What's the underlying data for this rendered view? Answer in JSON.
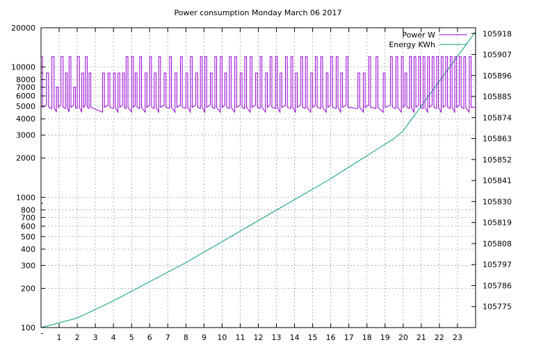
{
  "chart_data": {
    "type": "line",
    "title": "Power consumption Monday March 06 2017",
    "x_axis": {
      "range": [
        0,
        24
      ],
      "ticks": [
        1,
        2,
        3,
        4,
        5,
        6,
        7,
        8,
        9,
        10,
        11,
        12,
        13,
        14,
        15,
        16,
        17,
        18,
        19,
        20,
        21,
        22,
        23
      ],
      "tick_labels": [
        "1",
        "2",
        "3",
        "4",
        "5",
        "6",
        "7",
        "8",
        "9",
        "10",
        "11",
        "12",
        "13",
        "14",
        "15",
        "16",
        "17",
        "18",
        "19",
        "20",
        "21",
        "22",
        "23"
      ],
      "grid": true
    },
    "y_axis_left": {
      "scale": "log",
      "range": [
        100,
        20000
      ],
      "ticks": [
        100,
        200,
        300,
        400,
        500,
        600,
        700,
        800,
        1000,
        2000,
        3000,
        4000,
        5000,
        6000,
        7000,
        8000,
        10000,
        20000
      ],
      "tick_labels": [
        "100",
        "200",
        "300",
        "400",
        "500",
        "600",
        "700",
        "800",
        "1000",
        "2000",
        "3000",
        "4000",
        "5000",
        "6000",
        "7000",
        "8000",
        "10000",
        "20000"
      ],
      "grid": true
    },
    "y_axis_right": {
      "scale": "linear",
      "range": [
        105764,
        105921
      ],
      "ticks": [
        105775,
        105786,
        105797,
        105808,
        105819,
        105830,
        105841,
        105852,
        105863,
        105874,
        105885,
        105896,
        105907,
        105918
      ],
      "tick_labels": [
        "105775",
        "105786",
        "105797",
        "105808",
        "105819",
        "105830",
        "105841",
        "105852",
        "105863",
        "105874",
        "105885",
        "105896",
        "105907",
        "105918"
      ]
    },
    "legend": {
      "placement": "top-right"
    },
    "series": [
      {
        "name": "Power W",
        "axis": "left",
        "color": "#9400d3",
        "baseline_w": 4900,
        "peak_w": 12000,
        "mid_w": 9000,
        "pulses": [
          [
            0.0,
            0.08,
            12000
          ],
          [
            0.3,
            0.42,
            9000
          ],
          [
            0.6,
            0.72,
            12000
          ],
          [
            0.85,
            0.95,
            7000
          ],
          [
            1.1,
            1.22,
            12000
          ],
          [
            1.35,
            1.45,
            9000
          ],
          [
            1.55,
            1.65,
            12000
          ],
          [
            1.8,
            1.9,
            7000
          ],
          [
            2.0,
            2.12,
            12000
          ],
          [
            2.25,
            2.35,
            9000
          ],
          [
            2.45,
            2.55,
            12000
          ],
          [
            2.65,
            2.75,
            9000
          ],
          [
            3.4,
            3.5,
            9000
          ],
          [
            3.7,
            3.8,
            9000
          ],
          [
            4.0,
            4.1,
            9000
          ],
          [
            4.25,
            4.35,
            9000
          ],
          [
            4.5,
            4.6,
            9000
          ],
          [
            4.7,
            4.8,
            12000
          ],
          [
            5.0,
            5.1,
            12000
          ],
          [
            5.2,
            5.3,
            9000
          ],
          [
            5.45,
            5.55,
            12000
          ],
          [
            5.75,
            5.85,
            9000
          ],
          [
            6.0,
            6.1,
            12000
          ],
          [
            6.25,
            6.35,
            9000
          ],
          [
            6.5,
            6.6,
            12000
          ],
          [
            6.8,
            6.9,
            9000
          ],
          [
            7.1,
            7.2,
            12000
          ],
          [
            7.4,
            7.5,
            9000
          ],
          [
            7.7,
            7.8,
            12000
          ],
          [
            8.0,
            8.1,
            9000
          ],
          [
            8.25,
            8.35,
            12000
          ],
          [
            8.55,
            8.65,
            9000
          ],
          [
            8.8,
            8.9,
            12000
          ],
          [
            9.05,
            9.15,
            12000
          ],
          [
            9.35,
            9.45,
            9000
          ],
          [
            9.6,
            9.7,
            12000
          ],
          [
            9.9,
            10.0,
            12000
          ],
          [
            10.15,
            10.25,
            9000
          ],
          [
            10.4,
            10.5,
            12000
          ],
          [
            10.7,
            10.8,
            12000
          ],
          [
            11.0,
            11.1,
            9000
          ],
          [
            11.25,
            11.35,
            12000
          ],
          [
            11.55,
            11.65,
            12000
          ],
          [
            11.85,
            11.95,
            9000
          ],
          [
            12.1,
            12.2,
            12000
          ],
          [
            12.4,
            12.5,
            9000
          ],
          [
            12.65,
            12.75,
            12000
          ],
          [
            12.95,
            13.05,
            12000
          ],
          [
            13.2,
            13.3,
            9000
          ],
          [
            13.5,
            13.6,
            12000
          ],
          [
            13.8,
            13.9,
            12000
          ],
          [
            14.05,
            14.15,
            9000
          ],
          [
            14.35,
            14.45,
            12000
          ],
          [
            14.6,
            14.7,
            12000
          ],
          [
            14.9,
            15.0,
            9000
          ],
          [
            15.15,
            15.25,
            12000
          ],
          [
            15.45,
            15.55,
            12000
          ],
          [
            15.75,
            15.85,
            9000
          ],
          [
            16.0,
            16.1,
            12000
          ],
          [
            16.3,
            16.4,
            12000
          ],
          [
            16.55,
            16.65,
            9000
          ],
          [
            16.85,
            16.95,
            12000
          ],
          [
            17.5,
            17.6,
            9000
          ],
          [
            17.8,
            17.9,
            9000
          ],
          [
            18.1,
            18.2,
            12000
          ],
          [
            18.5,
            18.6,
            12000
          ],
          [
            18.9,
            19.0,
            9000
          ],
          [
            19.3,
            19.4,
            12000
          ],
          [
            19.6,
            19.7,
            12000
          ],
          [
            19.9,
            20.0,
            12000
          ],
          [
            20.1,
            20.2,
            9000
          ],
          [
            20.35,
            20.45,
            12000
          ],
          [
            20.6,
            20.7,
            12000
          ],
          [
            20.85,
            20.95,
            12000
          ],
          [
            21.1,
            21.2,
            12000
          ],
          [
            21.35,
            21.45,
            12000
          ],
          [
            21.6,
            21.7,
            12000
          ],
          [
            21.85,
            21.95,
            12000
          ],
          [
            22.1,
            22.2,
            12000
          ],
          [
            22.35,
            22.45,
            12000
          ],
          [
            22.6,
            22.7,
            12000
          ],
          [
            22.85,
            22.95,
            12000
          ],
          [
            23.1,
            23.2,
            12000
          ],
          [
            23.35,
            23.45,
            12000
          ],
          [
            23.65,
            23.75,
            12000
          ]
        ]
      },
      {
        "name": "Energy KWh",
        "axis": "right",
        "color": "#009e73",
        "x": [
          0,
          2,
          4,
          6,
          8,
          10,
          12,
          14,
          16,
          18,
          19.5,
          20,
          21,
          22,
          23,
          24
        ],
        "values": [
          105764,
          105769,
          105778,
          105788,
          105798,
          105809,
          105820,
          105831,
          105842,
          105854,
          105863,
          105867,
          105880,
          105893,
          105906,
          105919
        ]
      }
    ]
  }
}
